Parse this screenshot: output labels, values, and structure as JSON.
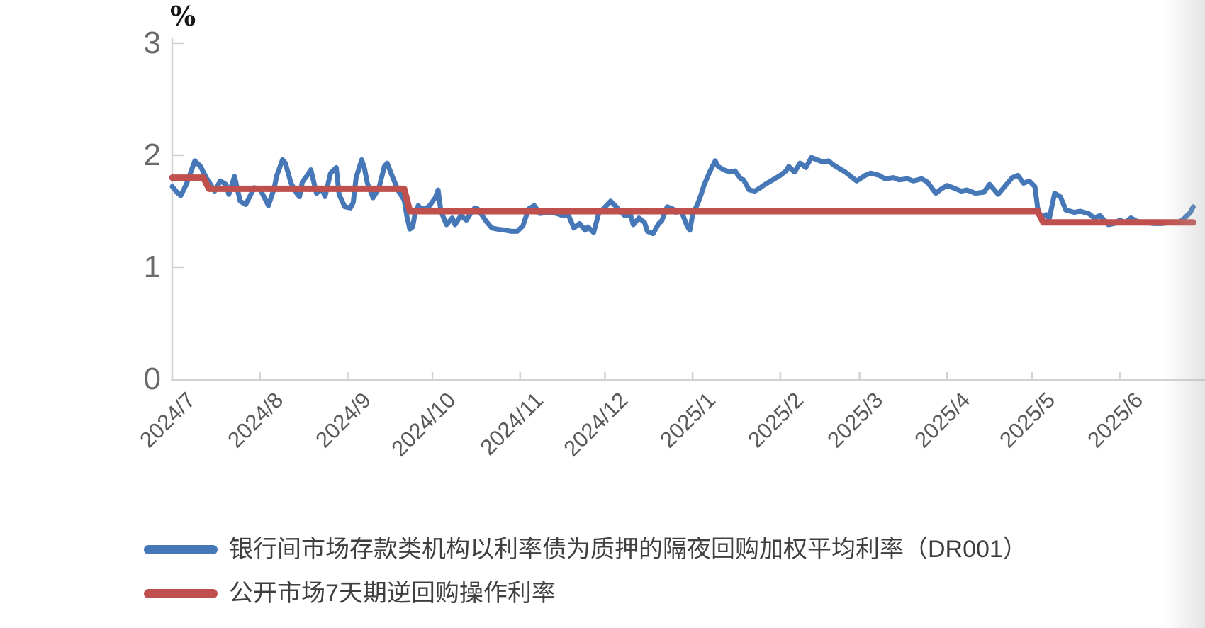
{
  "chart": {
    "unit_label": "%",
    "colors": {
      "dr001_line": "#4678B8",
      "policy_line": "#C0504D",
      "axis": "#D2D2D2",
      "tick_text": "#595959",
      "legend_text": "#3f3f3f"
    }
  },
  "legend": [
    {
      "label": "银行间市场存款类机构以利率债为质押的隔夜回购加权平均利率（DR001）",
      "color": "#4678B8"
    },
    {
      "label": "公开市场7天期逆回购操作利率",
      "color": "#C0504D"
    }
  ],
  "chart_data": {
    "type": "line",
    "ylabel": "%",
    "ylim": [
      0,
      3
    ],
    "y_ticks": [
      {
        "label": "3",
        "value": 3
      },
      {
        "label": "2",
        "value": 2
      },
      {
        "label": "1",
        "value": 1
      },
      {
        "label": "0",
        "value": 0
      }
    ],
    "x_ticks": [
      {
        "label": "2024/7",
        "day": 0
      },
      {
        "label": "2024/8",
        "day": 31
      },
      {
        "label": "2024/9",
        "day": 62
      },
      {
        "label": "2024/10",
        "day": 92
      },
      {
        "label": "2024/11",
        "day": 123
      },
      {
        "label": "2024/12",
        "day": 153
      },
      {
        "label": "2025/1",
        "day": 184
      },
      {
        "label": "2025/2",
        "day": 215
      },
      {
        "label": "2025/3",
        "day": 243
      },
      {
        "label": "2025/4",
        "day": 274
      },
      {
        "label": "2025/5",
        "day": 304
      },
      {
        "label": "2025/6",
        "day": 335
      }
    ],
    "x_unit": "days since 2024-07-01",
    "grid": false,
    "legend_position": "bottom-left",
    "series": [
      {
        "name": "银行间市场存款类机构以利率债为质押的隔夜回购加权平均利率（DR001）",
        "color": "#4678B8",
        "width": 7,
        "points": [
          [
            0,
            1.72
          ],
          [
            2,
            1.66
          ],
          [
            3,
            1.64
          ],
          [
            5,
            1.74
          ],
          [
            7,
            1.88
          ],
          [
            8,
            1.95
          ],
          [
            10,
            1.9
          ],
          [
            12,
            1.8
          ],
          [
            13,
            1.76
          ],
          [
            15,
            1.68
          ],
          [
            17,
            1.77
          ],
          [
            19,
            1.74
          ],
          [
            20,
            1.65
          ],
          [
            22,
            1.81
          ],
          [
            24,
            1.59
          ],
          [
            26,
            1.56
          ],
          [
            28,
            1.66
          ],
          [
            29,
            1.71
          ],
          [
            31,
            1.7
          ],
          [
            33,
            1.6
          ],
          [
            34,
            1.55
          ],
          [
            36,
            1.7
          ],
          [
            37,
            1.82
          ],
          [
            39,
            1.96
          ],
          [
            40,
            1.93
          ],
          [
            42,
            1.75
          ],
          [
            44,
            1.66
          ],
          [
            45,
            1.63
          ],
          [
            46,
            1.76
          ],
          [
            48,
            1.83
          ],
          [
            49,
            1.87
          ],
          [
            51,
            1.66
          ],
          [
            53,
            1.7
          ],
          [
            54,
            1.63
          ],
          [
            56,
            1.84
          ],
          [
            58,
            1.89
          ],
          [
            59,
            1.65
          ],
          [
            61,
            1.54
          ],
          [
            63,
            1.53
          ],
          [
            64,
            1.58
          ],
          [
            65,
            1.8
          ],
          [
            67,
            1.96
          ],
          [
            68,
            1.88
          ],
          [
            69,
            1.75
          ],
          [
            71,
            1.62
          ],
          [
            73,
            1.7
          ],
          [
            75,
            1.9
          ],
          [
            76,
            1.93
          ],
          [
            78,
            1.8
          ],
          [
            80,
            1.68
          ],
          [
            82,
            1.6
          ],
          [
            83,
            1.45
          ],
          [
            84,
            1.34
          ],
          [
            85,
            1.36
          ],
          [
            86,
            1.5
          ],
          [
            87,
            1.55
          ],
          [
            88,
            1.52
          ],
          [
            90,
            1.53
          ],
          [
            91,
            1.55
          ],
          [
            93,
            1.62
          ],
          [
            94,
            1.69
          ],
          [
            95,
            1.5
          ],
          [
            96,
            1.44
          ],
          [
            97,
            1.38
          ],
          [
            99,
            1.44
          ],
          [
            100,
            1.38
          ],
          [
            102,
            1.46
          ],
          [
            104,
            1.42
          ],
          [
            106,
            1.5
          ],
          [
            107,
            1.53
          ],
          [
            108,
            1.52
          ],
          [
            111,
            1.41
          ],
          [
            113,
            1.35
          ],
          [
            115,
            1.34
          ],
          [
            118,
            1.33
          ],
          [
            120,
            1.32
          ],
          [
            122,
            1.32
          ],
          [
            124,
            1.37
          ],
          [
            126,
            1.52
          ],
          [
            128,
            1.55
          ],
          [
            130,
            1.48
          ],
          [
            133,
            1.49
          ],
          [
            136,
            1.48
          ],
          [
            138,
            1.46
          ],
          [
            140,
            1.47
          ],
          [
            142,
            1.35
          ],
          [
            144,
            1.39
          ],
          [
            146,
            1.33
          ],
          [
            147,
            1.36
          ],
          [
            149,
            1.31
          ],
          [
            151,
            1.5
          ],
          [
            152,
            1.51
          ],
          [
            155,
            1.59
          ],
          [
            157,
            1.54
          ],
          [
            158,
            1.51
          ],
          [
            160,
            1.46
          ],
          [
            162,
            1.47
          ],
          [
            163,
            1.38
          ],
          [
            165,
            1.44
          ],
          [
            167,
            1.4
          ],
          [
            168,
            1.32
          ],
          [
            170,
            1.3
          ],
          [
            172,
            1.39
          ],
          [
            173,
            1.41
          ],
          [
            175,
            1.54
          ],
          [
            177,
            1.52
          ],
          [
            178,
            1.49
          ],
          [
            180,
            1.5
          ],
          [
            182,
            1.37
          ],
          [
            183,
            1.33
          ],
          [
            184,
            1.47
          ],
          [
            186,
            1.58
          ],
          [
            187,
            1.65
          ],
          [
            188,
            1.73
          ],
          [
            190,
            1.85
          ],
          [
            192,
            1.95
          ],
          [
            193,
            1.9
          ],
          [
            195,
            1.87
          ],
          [
            197,
            1.85
          ],
          [
            199,
            1.86
          ],
          [
            201,
            1.79
          ],
          [
            202,
            1.78
          ],
          [
            204,
            1.69
          ],
          [
            206,
            1.68
          ],
          [
            208,
            1.71
          ],
          [
            209,
            1.73
          ],
          [
            211,
            1.76
          ],
          [
            213,
            1.79
          ],
          [
            215,
            1.82
          ],
          [
            217,
            1.86
          ],
          [
            218,
            1.9
          ],
          [
            220,
            1.85
          ],
          [
            222,
            1.93
          ],
          [
            224,
            1.89
          ],
          [
            226,
            1.98
          ],
          [
            228,
            1.96
          ],
          [
            230,
            1.94
          ],
          [
            232,
            1.95
          ],
          [
            234,
            1.91
          ],
          [
            236,
            1.88
          ],
          [
            238,
            1.85
          ],
          [
            241,
            1.79
          ],
          [
            242,
            1.77
          ],
          [
            245,
            1.82
          ],
          [
            247,
            1.84
          ],
          [
            250,
            1.82
          ],
          [
            252,
            1.79
          ],
          [
            255,
            1.8
          ],
          [
            257,
            1.78
          ],
          [
            260,
            1.79
          ],
          [
            262,
            1.77
          ],
          [
            265,
            1.79
          ],
          [
            267,
            1.76
          ],
          [
            270,
            1.66
          ],
          [
            272,
            1.7
          ],
          [
            274,
            1.73
          ],
          [
            276,
            1.71
          ],
          [
            279,
            1.68
          ],
          [
            281,
            1.69
          ],
          [
            284,
            1.66
          ],
          [
            287,
            1.67
          ],
          [
            289,
            1.74
          ],
          [
            292,
            1.65
          ],
          [
            294,
            1.71
          ],
          [
            297,
            1.8
          ],
          [
            299,
            1.82
          ],
          [
            301,
            1.75
          ],
          [
            303,
            1.77
          ],
          [
            305,
            1.72
          ],
          [
            306,
            1.53
          ],
          [
            307,
            1.44
          ],
          [
            309,
            1.47
          ],
          [
            310,
            1.42
          ],
          [
            312,
            1.66
          ],
          [
            314,
            1.63
          ],
          [
            316,
            1.51
          ],
          [
            319,
            1.49
          ],
          [
            321,
            1.5
          ],
          [
            324,
            1.48
          ],
          [
            326,
            1.44
          ],
          [
            328,
            1.46
          ],
          [
            331,
            1.38
          ],
          [
            333,
            1.39
          ],
          [
            335,
            1.42
          ],
          [
            337,
            1.4
          ],
          [
            339,
            1.44
          ],
          [
            341,
            1.41
          ],
          [
            344,
            1.4
          ],
          [
            347,
            1.39
          ],
          [
            350,
            1.39
          ],
          [
            353,
            1.4
          ],
          [
            356,
            1.4
          ],
          [
            358,
            1.44
          ],
          [
            360,
            1.49
          ],
          [
            361,
            1.54
          ]
        ]
      },
      {
        "name": "公开市场7天期逆回购操作利率",
        "color": "#C0504D",
        "width": 9,
        "points": [
          [
            0,
            1.8
          ],
          [
            11,
            1.8
          ],
          [
            13,
            1.7
          ],
          [
            82,
            1.7
          ],
          [
            84,
            1.5
          ],
          [
            306,
            1.5
          ],
          [
            308,
            1.4
          ],
          [
            361,
            1.4
          ]
        ]
      }
    ]
  }
}
